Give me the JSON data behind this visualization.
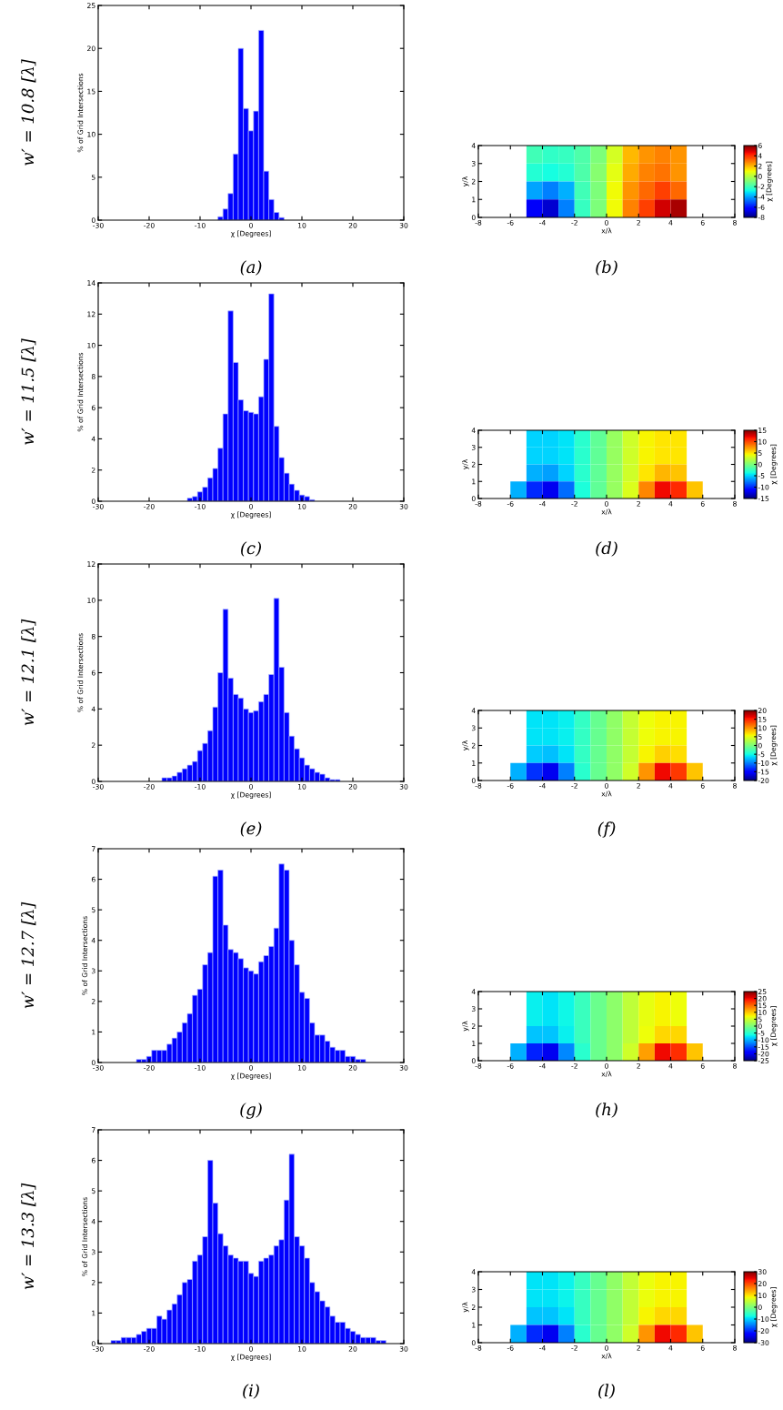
{
  "chart_data": [
    {
      "type": "histogram",
      "xlabel": "χ [Degrees]",
      "ylabel": "% of Grid Intersections",
      "annotations": [
        "(a)",
        "w′ = 10.8 [λ]"
      ],
      "color": "#0000ff",
      "xlim": [
        -30,
        30
      ],
      "xticks": [
        -30,
        -20,
        -10,
        0,
        10,
        20,
        30
      ],
      "ylim": [
        0,
        25
      ],
      "yticks": [
        0,
        5,
        10,
        15,
        20,
        25
      ],
      "bins": [
        -6.5,
        -5.5,
        -4.5,
        -3.5,
        -2.5,
        -1.5,
        -0.5,
        0.5,
        1.5,
        2.5,
        3.5,
        4.5,
        5.5,
        6.5
      ],
      "values": [
        0.4,
        1.3,
        3.1,
        7.7,
        20.0,
        13.0,
        10.4,
        12.7,
        22.1,
        5.7,
        2.4,
        0.9,
        0.3
      ]
    },
    {
      "type": "heatmap",
      "xlabel": "x/λ",
      "ylabel": "y/λ",
      "clabel": "χ [Degrees]",
      "annotations": [
        "(b)"
      ],
      "xlim": [
        -8,
        8
      ],
      "xticks": [
        -8,
        -6,
        -4,
        -2,
        0,
        2,
        4,
        6,
        8
      ],
      "ylim": [
        0,
        4
      ],
      "yticks": [
        0,
        1,
        2,
        3,
        4
      ],
      "clim": [
        -8,
        6
      ],
      "cticks": [
        -8,
        -6,
        -4,
        -2,
        0,
        2,
        4,
        6
      ],
      "x": [
        -7.5,
        -6.5,
        -5.5,
        -4.5,
        -3.5,
        -2.5,
        -1.5,
        -0.5,
        0.5,
        1.5,
        2.5,
        3.5,
        4.5,
        5.5,
        6.5,
        7.5
      ],
      "y": [
        3.5,
        2.5,
        1.5,
        0.5
      ],
      "cells": [
        [
          null,
          null,
          null,
          -2,
          -2.3,
          -2.2,
          -1.8,
          -1,
          0.5,
          2,
          2.5,
          2.8,
          2.5,
          null,
          null,
          null
        ],
        [
          null,
          null,
          null,
          -2.5,
          -2.7,
          -2.5,
          -1.8,
          -0.8,
          0.8,
          2.2,
          2.8,
          3,
          2.5,
          null,
          null,
          null
        ],
        [
          null,
          null,
          null,
          -4,
          -4.5,
          -3.8,
          -2,
          -1,
          1,
          2.5,
          3.2,
          3.8,
          3.2,
          null,
          null,
          null
        ],
        [
          null,
          null,
          null,
          -6.5,
          -7,
          -4.5,
          -2.2,
          -1,
          1,
          2.8,
          3.8,
          5,
          5.5,
          null,
          null,
          null
        ]
      ]
    },
    {
      "type": "histogram",
      "xlabel": "χ [Degrees]",
      "ylabel": "% of Grid Intersections",
      "annotations": [
        "(c)",
        "w′ = 11.5 [λ]"
      ],
      "color": "#0000ff",
      "xlim": [
        -30,
        30
      ],
      "xticks": [
        -30,
        -20,
        -10,
        0,
        10,
        20,
        30
      ],
      "ylim": [
        0,
        14
      ],
      "yticks": [
        0,
        2,
        4,
        6,
        8,
        10,
        12,
        14
      ],
      "bins": [
        -12.5,
        -11.5,
        -10.5,
        -9.5,
        -8.5,
        -7.5,
        -6.5,
        -5.5,
        -4.5,
        -3.5,
        -2.5,
        -1.5,
        -0.5,
        0.5,
        1.5,
        2.5,
        3.5,
        4.5,
        5.5,
        6.5,
        7.5,
        8.5,
        9.5,
        10.5,
        11.5,
        12.5
      ],
      "values": [
        0.2,
        0.3,
        0.6,
        0.9,
        1.5,
        2.1,
        3.4,
        5.6,
        12.2,
        8.9,
        6.5,
        5.8,
        5.7,
        5.6,
        6.7,
        9.1,
        13.3,
        4.8,
        2.8,
        1.8,
        1.1,
        0.7,
        0.4,
        0.3,
        0.1
      ]
    },
    {
      "type": "heatmap",
      "xlabel": "x/λ",
      "ylabel": "y/λ",
      "clabel": "χ [Degrees]",
      "annotations": [
        "(d)"
      ],
      "xlim": [
        -8,
        8
      ],
      "xticks": [
        -8,
        -6,
        -4,
        -2,
        0,
        2,
        4,
        6,
        8
      ],
      "ylim": [
        0,
        4
      ],
      "yticks": [
        0,
        1,
        2,
        3,
        4
      ],
      "clim": [
        -15,
        15
      ],
      "cticks": [
        -15,
        -10,
        -5,
        0,
        5,
        10,
        15
      ],
      "x": [
        -7.5,
        -6.5,
        -5.5,
        -4.5,
        -3.5,
        -2.5,
        -1.5,
        -0.5,
        0.5,
        1.5,
        2.5,
        3.5,
        4.5,
        5.5,
        6.5,
        7.5
      ],
      "y": [
        3.5,
        2.5,
        1.5,
        0.5
      ],
      "cells": [
        [
          null,
          null,
          null,
          -5,
          -5,
          -4.5,
          -3,
          -1,
          1,
          3,
          4.5,
          5,
          5,
          null,
          null,
          null
        ],
        [
          null,
          null,
          null,
          -5,
          -5,
          -4.5,
          -3,
          -1,
          1,
          3,
          4.5,
          5,
          5,
          null,
          null,
          null
        ],
        [
          null,
          null,
          null,
          -6,
          -6.5,
          -5,
          -3,
          -1,
          1,
          3,
          5,
          6.5,
          6,
          null,
          null,
          null
        ],
        [
          null,
          null,
          -6,
          -10,
          -12,
          -8,
          -3.5,
          -1,
          1,
          3.5,
          8,
          12,
          11,
          6,
          null,
          null
        ]
      ]
    },
    {
      "type": "histogram",
      "xlabel": "χ [Degrees]",
      "ylabel": "% of Grid Intersections",
      "annotations": [
        "(e)",
        "w′ = 12.1 [λ]"
      ],
      "color": "#0000ff",
      "xlim": [
        -30,
        30
      ],
      "xticks": [
        -30,
        -20,
        -10,
        0,
        10,
        20,
        30
      ],
      "ylim": [
        0,
        12
      ],
      "yticks": [
        0,
        2,
        4,
        6,
        8,
        10,
        12
      ],
      "bins": [
        -17.5,
        -16.5,
        -15.5,
        -14.5,
        -13.5,
        -12.5,
        -11.5,
        -10.5,
        -9.5,
        -8.5,
        -7.5,
        -6.5,
        -5.5,
        -4.5,
        -3.5,
        -2.5,
        -1.5,
        -0.5,
        0.5,
        1.5,
        2.5,
        3.5,
        4.5,
        5.5,
        6.5,
        7.5,
        8.5,
        9.5,
        10.5,
        11.5,
        12.5,
        13.5,
        14.5,
        15.5,
        16.5,
        17.5
      ],
      "values": [
        0.2,
        0.2,
        0.3,
        0.5,
        0.7,
        0.9,
        1.1,
        1.7,
        2.1,
        2.8,
        4.1,
        6.0,
        9.5,
        5.7,
        4.8,
        4.6,
        4.0,
        3.8,
        3.9,
        4.4,
        4.8,
        5.9,
        10.1,
        6.3,
        3.8,
        2.5,
        1.8,
        1.3,
        0.9,
        0.7,
        0.5,
        0.4,
        0.2,
        0.1,
        0.1
      ]
    },
    {
      "type": "heatmap",
      "xlabel": "x/λ",
      "ylabel": "y/λ",
      "clabel": "χ [Degrees]",
      "annotations": [
        "(f)"
      ],
      "xlim": [
        -8,
        8
      ],
      "xticks": [
        -8,
        -6,
        -4,
        -2,
        0,
        2,
        4,
        6,
        8
      ],
      "ylim": [
        0,
        4
      ],
      "yticks": [
        0,
        1,
        2,
        3,
        4
      ],
      "clim": [
        -20,
        20
      ],
      "cticks": [
        -20,
        -15,
        -10,
        -5,
        0,
        5,
        10,
        15,
        20
      ],
      "x": [
        -7.5,
        -6.5,
        -5.5,
        -4.5,
        -3.5,
        -2.5,
        -1.5,
        -0.5,
        0.5,
        1.5,
        2.5,
        3.5,
        4.5,
        5.5,
        6.5,
        7.5
      ],
      "y": [
        3.5,
        2.5,
        1.5,
        0.5
      ],
      "cells": [
        [
          null,
          null,
          null,
          -6,
          -6,
          -5.5,
          -3.5,
          -1,
          1,
          3.5,
          5.5,
          6,
          6,
          null,
          null,
          null
        ],
        [
          null,
          null,
          null,
          -6,
          -6,
          -5.5,
          -3.5,
          -1,
          1,
          3.5,
          5.5,
          6,
          6,
          null,
          null,
          null
        ],
        [
          null,
          null,
          null,
          -7,
          -7.5,
          -6,
          -3.5,
          -1,
          1,
          3.5,
          6,
          7.5,
          7,
          null,
          null,
          null
        ],
        [
          null,
          null,
          -8,
          -13,
          -16,
          -10,
          -4,
          -1,
          1,
          4,
          10,
          16,
          14,
          8,
          null,
          null
        ]
      ]
    },
    {
      "type": "histogram",
      "xlabel": "χ [Degrees]",
      "ylabel": "% of Grid Intersections",
      "annotations": [
        "(g)",
        "w′ = 12.7 [λ]"
      ],
      "color": "#0000ff",
      "xlim": [
        -30,
        30
      ],
      "xticks": [
        -30,
        -20,
        -10,
        0,
        10,
        20,
        30
      ],
      "ylim": [
        0,
        7
      ],
      "yticks": [
        0,
        1,
        2,
        3,
        4,
        5,
        6,
        7
      ],
      "bins": [
        -22.5,
        -21.5,
        -20.5,
        -19.5,
        -18.5,
        -17.5,
        -16.5,
        -15.5,
        -14.5,
        -13.5,
        -12.5,
        -11.5,
        -10.5,
        -9.5,
        -8.5,
        -7.5,
        -6.5,
        -5.5,
        -4.5,
        -3.5,
        -2.5,
        -1.5,
        -0.5,
        0.5,
        1.5,
        2.5,
        3.5,
        4.5,
        5.5,
        6.5,
        7.5,
        8.5,
        9.5,
        10.5,
        11.5,
        12.5,
        13.5,
        14.5,
        15.5,
        16.5,
        17.5,
        18.5,
        19.5,
        20.5,
        21.5,
        22.5
      ],
      "values": [
        0.1,
        0.1,
        0.2,
        0.4,
        0.4,
        0.4,
        0.6,
        0.8,
        1.0,
        1.3,
        1.6,
        2.2,
        2.4,
        3.2,
        3.6,
        6.1,
        6.3,
        4.5,
        3.7,
        3.6,
        3.4,
        3.1,
        3.0,
        2.9,
        3.3,
        3.5,
        3.8,
        4.4,
        6.5,
        6.3,
        4.0,
        3.2,
        2.3,
        2.1,
        1.3,
        0.9,
        0.9,
        0.7,
        0.5,
        0.4,
        0.4,
        0.2,
        0.2,
        0.1,
        0.1
      ]
    },
    {
      "type": "heatmap",
      "xlabel": "x/λ",
      "ylabel": "y/λ",
      "clabel": "χ [Degrees]",
      "annotations": [
        "(h)"
      ],
      "xlim": [
        -8,
        8
      ],
      "xticks": [
        -8,
        -6,
        -4,
        -2,
        0,
        2,
        4,
        6,
        8
      ],
      "ylim": [
        0,
        4
      ],
      "yticks": [
        0,
        1,
        2,
        3,
        4
      ],
      "clim": [
        -25,
        25
      ],
      "cticks": [
        -25,
        -20,
        -15,
        -10,
        -5,
        0,
        5,
        10,
        15,
        20,
        25
      ],
      "x": [
        -7.5,
        -6.5,
        -5.5,
        -4.5,
        -3.5,
        -2.5,
        -1.5,
        -0.5,
        0.5,
        1.5,
        2.5,
        3.5,
        4.5,
        5.5,
        6.5,
        7.5
      ],
      "y": [
        3.5,
        2.5,
        1.5,
        0.5
      ],
      "cells": [
        [
          null,
          null,
          null,
          -7,
          -7.5,
          -6.5,
          -4,
          -1,
          1,
          4,
          6.5,
          7.5,
          7,
          null,
          null,
          null
        ],
        [
          null,
          null,
          null,
          -7,
          -7.5,
          -6.5,
          -4,
          -1,
          1,
          4,
          6.5,
          7.5,
          7,
          null,
          null,
          null
        ],
        [
          null,
          null,
          null,
          -9,
          -9,
          -7,
          -4,
          -1,
          1,
          4,
          7,
          9,
          9,
          null,
          null,
          null
        ],
        [
          null,
          null,
          -10,
          -17,
          -20,
          -12,
          -5,
          -1,
          1,
          5,
          12,
          20,
          18,
          10,
          null,
          null
        ]
      ]
    },
    {
      "type": "histogram",
      "xlabel": "χ [Degrees]",
      "ylabel": "% of Grid Intersections",
      "annotations": [
        "(i)",
        "w′ = 13.3 [λ]"
      ],
      "color": "#0000ff",
      "xlim": [
        -30,
        30
      ],
      "xticks": [
        -30,
        -20,
        -10,
        0,
        10,
        20,
        30
      ],
      "ylim": [
        0,
        7
      ],
      "yticks": [
        0,
        1,
        2,
        3,
        4,
        5,
        6,
        7
      ],
      "bins": [
        -27.5,
        -26.5,
        -25.5,
        -24.5,
        -23.5,
        -22.5,
        -21.5,
        -20.5,
        -19.5,
        -18.5,
        -17.5,
        -16.5,
        -15.5,
        -14.5,
        -13.5,
        -12.5,
        -11.5,
        -10.5,
        -9.5,
        -8.5,
        -7.5,
        -6.5,
        -5.5,
        -4.5,
        -3.5,
        -2.5,
        -1.5,
        -0.5,
        0.5,
        1.5,
        2.5,
        3.5,
        4.5,
        5.5,
        6.5,
        7.5,
        8.5,
        9.5,
        10.5,
        11.5,
        12.5,
        13.5,
        14.5,
        15.5,
        16.5,
        17.5,
        18.5,
        19.5,
        20.5,
        21.5,
        22.5,
        23.5,
        24.5,
        25.5,
        26.5
      ],
      "values": [
        0.1,
        0.1,
        0.2,
        0.2,
        0.2,
        0.3,
        0.4,
        0.5,
        0.5,
        0.9,
        0.8,
        1.1,
        1.3,
        1.6,
        2.0,
        2.1,
        2.7,
        2.9,
        3.5,
        6.0,
        4.6,
        3.6,
        3.2,
        2.9,
        2.8,
        2.7,
        2.7,
        2.3,
        2.2,
        2.7,
        2.8,
        2.9,
        3.2,
        3.4,
        4.7,
        6.2,
        3.5,
        3.2,
        2.8,
        2.0,
        1.7,
        1.4,
        1.2,
        0.9,
        0.7,
        0.7,
        0.5,
        0.4,
        0.3,
        0.2,
        0.2,
        0.2,
        0.1,
        0.1
      ]
    },
    {
      "type": "heatmap",
      "xlabel": "x/λ",
      "ylabel": "y/λ",
      "clabel": "χ [Degrees]",
      "annotations": [
        "(l)"
      ],
      "xlim": [
        -8,
        8
      ],
      "xticks": [
        -8,
        -6,
        -4,
        -2,
        0,
        2,
        4,
        6,
        8
      ],
      "ylim": [
        0,
        4
      ],
      "yticks": [
        0,
        1,
        2,
        3,
        4
      ],
      "clim": [
        -30,
        30
      ],
      "cticks": [
        -30,
        -20,
        -10,
        0,
        10,
        20,
        30
      ],
      "x": [
        -7.5,
        -6.5,
        -5.5,
        -4.5,
        -3.5,
        -2.5,
        -1.5,
        -0.5,
        0.5,
        1.5,
        2.5,
        3.5,
        4.5,
        5.5,
        6.5,
        7.5
      ],
      "y": [
        3.5,
        2.5,
        1.5,
        0.5
      ],
      "cells": [
        [
          null,
          null,
          null,
          -9,
          -9,
          -8,
          -5,
          -1.5,
          1.5,
          5,
          8,
          9,
          9,
          null,
          null,
          null
        ],
        [
          null,
          null,
          null,
          -9,
          -9,
          -8,
          -5,
          -1.5,
          1.5,
          5,
          8,
          9,
          9,
          null,
          null,
          null
        ],
        [
          null,
          null,
          null,
          -11,
          -11,
          -9,
          -5,
          -1.5,
          1.5,
          5,
          9,
          11,
          11,
          null,
          null,
          null
        ],
        [
          null,
          null,
          -12,
          -20,
          -24,
          -15,
          -6,
          -1.5,
          1.5,
          6,
          15,
          24,
          22,
          12,
          null,
          null
        ]
      ]
    }
  ]
}
